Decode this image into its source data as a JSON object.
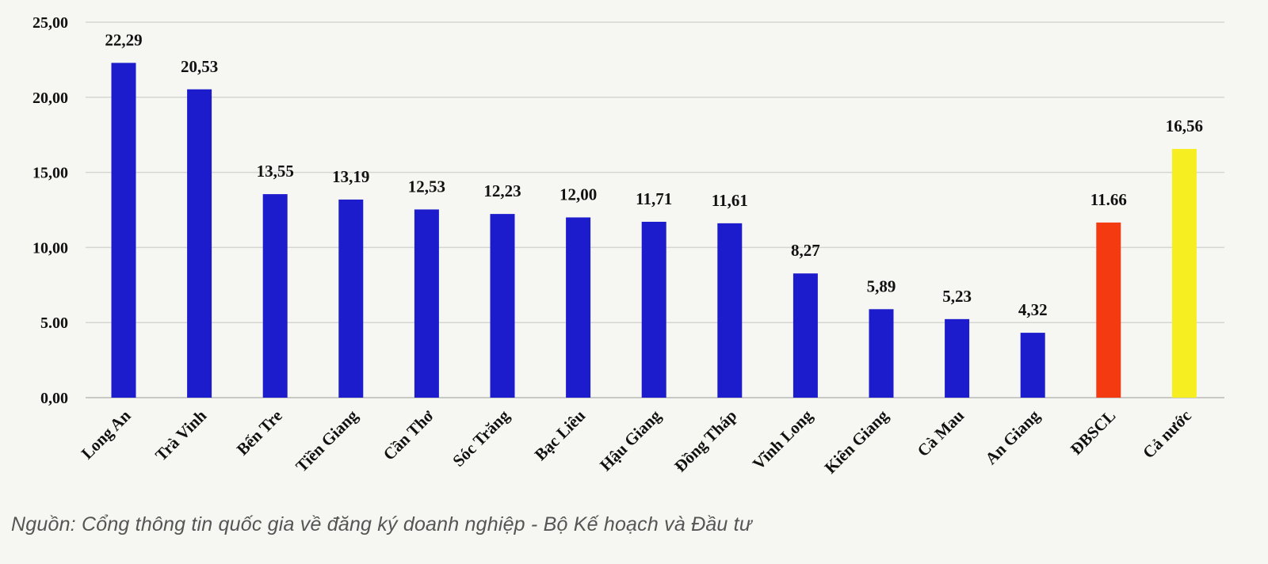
{
  "chart_data": {
    "type": "bar",
    "categories": [
      "Long An",
      "Trà Vinh",
      "Bến Tre",
      "Tiền Giang",
      "Cần Thơ",
      "Sóc Trăng",
      "Bạc Liêu",
      "Hậu Giang",
      "Đồng Tháp",
      "Vĩnh Long",
      "Kiên Giang",
      "Cà Mau",
      "An Giang",
      "ĐBSCL",
      "Cả nước"
    ],
    "values": [
      22.29,
      20.53,
      13.55,
      13.19,
      12.53,
      12.23,
      12.0,
      11.71,
      11.61,
      8.27,
      5.89,
      5.23,
      4.32,
      11.66,
      16.56
    ],
    "value_labels": [
      "22,29",
      "20,53",
      "13,55",
      "13,19",
      "12,53",
      "12,23",
      "12,00",
      "11,71",
      "11,61",
      "8,27",
      "5,89",
      "5,23",
      "4,32",
      "11.66",
      "16,56"
    ],
    "bar_colors": [
      "#1c1ccc",
      "#1c1ccc",
      "#1c1ccc",
      "#1c1ccc",
      "#1c1ccc",
      "#1c1ccc",
      "#1c1ccc",
      "#1c1ccc",
      "#1c1ccc",
      "#1c1ccc",
      "#1c1ccc",
      "#1c1ccc",
      "#1c1ccc",
      "#f43a10",
      "#f7ee22"
    ],
    "ylim": [
      0,
      25
    ],
    "yticks": [
      "0,00",
      "5.00",
      "10,00",
      "15,00",
      "20,00",
      "25,00"
    ],
    "ytick_values": [
      0,
      5,
      10,
      15,
      20,
      25
    ],
    "grid": true,
    "title": "",
    "xlabel": "",
    "ylabel": ""
  },
  "source_note": "Nguồn: Cổng thông tin quốc gia về đăng ký doanh nghiệp - Bộ Kế hoạch và Đầu tư"
}
